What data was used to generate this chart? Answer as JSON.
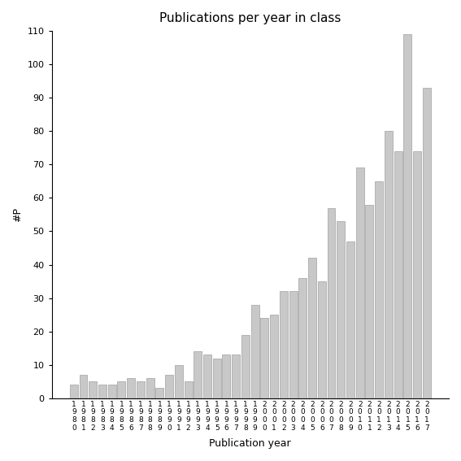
{
  "title": "Publications per year in class",
  "xlabel": "Publication year",
  "ylabel": "#P",
  "ylim": [
    0,
    110
  ],
  "yticks": [
    0,
    10,
    20,
    30,
    40,
    50,
    60,
    70,
    80,
    90,
    100,
    110
  ],
  "bar_color": "#c8c8c8",
  "bar_edgecolor": "#a0a0a0",
  "years": [
    1980,
    1981,
    1982,
    1983,
    1984,
    1985,
    1986,
    1987,
    1988,
    1989,
    1990,
    1991,
    1992,
    1993,
    1994,
    1995,
    1996,
    1997,
    1998,
    1999,
    2000,
    2001,
    2002,
    2003,
    2004,
    2005,
    2006,
    2007,
    2008,
    2009,
    2010,
    2011,
    2012,
    2013,
    2014,
    2015,
    2016,
    2017
  ],
  "values": [
    4,
    7,
    5,
    4,
    4,
    5,
    6,
    5,
    6,
    3,
    7,
    10,
    5,
    14,
    13,
    12,
    13,
    13,
    19,
    28,
    24,
    25,
    32,
    32,
    36,
    42,
    35,
    57,
    53,
    47,
    69,
    58,
    65,
    80,
    74,
    109,
    74,
    93
  ]
}
